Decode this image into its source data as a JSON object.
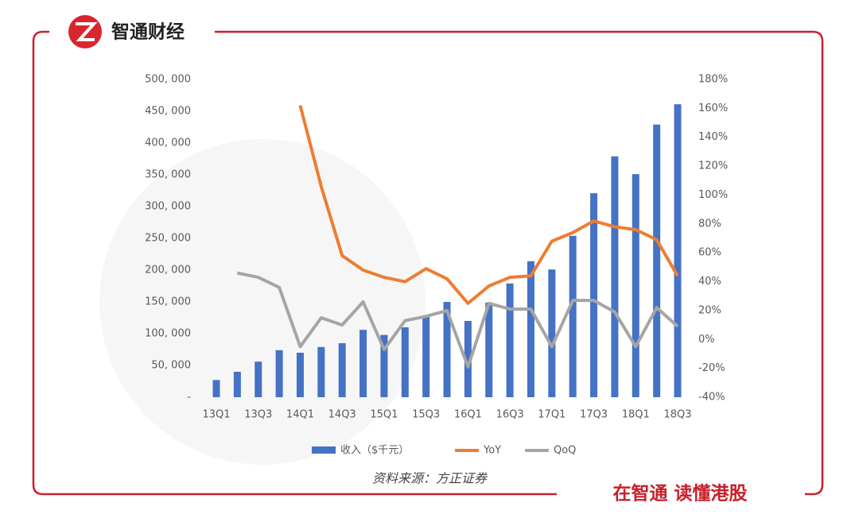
{
  "brand": "智通财经",
  "slogan": "在智通 读懂港股",
  "chart_data": {
    "type": "bar_line",
    "source": "资料来源：方正证券",
    "categories": [
      "13Q1",
      null,
      "13Q3",
      null,
      "14Q1",
      null,
      "14Q3",
      null,
      "15Q1",
      null,
      "15Q3",
      null,
      "16Q1",
      null,
      "16Q3",
      null,
      "17Q1",
      null,
      "17Q3",
      null,
      "18Q1",
      null,
      "18Q3"
    ],
    "series": [
      {
        "name": "收入（$千元）",
        "type": "bar",
        "color": "#4472c4",
        "axis": "y",
        "values": [
          27000,
          40000,
          56000,
          74000,
          70000,
          79000,
          85000,
          106000,
          98000,
          110000,
          128000,
          150000,
          120000,
          149000,
          179000,
          214000,
          201000,
          254000,
          321000,
          379000,
          351000,
          429000,
          461000
        ]
      },
      {
        "name": "YoY",
        "type": "line",
        "color": "#ed7d31",
        "axis": "y2",
        "values": [
          null,
          null,
          null,
          null,
          162,
          106,
          58,
          48,
          43,
          40,
          49,
          42,
          25,
          37,
          43,
          44,
          68,
          74,
          82,
          78,
          76,
          69,
          44
        ]
      },
      {
        "name": "QoQ",
        "type": "line",
        "color": "#a5a5a5",
        "axis": "y2",
        "values": [
          null,
          46,
          43,
          36,
          -5,
          15,
          10,
          26,
          -7,
          13,
          16,
          20,
          -19,
          25,
          21,
          21,
          -5,
          27,
          27,
          19,
          -5,
          22,
          9
        ]
      }
    ],
    "ylim": [
      0,
      500000
    ],
    "yticks": [
      {
        "value": 0,
        "label": "-"
      },
      {
        "value": 50000,
        "label": "50, 000"
      },
      {
        "value": 100000,
        "label": "100, 000"
      },
      {
        "value": 150000,
        "label": "150, 000"
      },
      {
        "value": 200000,
        "label": "200, 000"
      },
      {
        "value": 250000,
        "label": "250, 000"
      },
      {
        "value": 300000,
        "label": "300, 000"
      },
      {
        "value": 350000,
        "label": "350, 000"
      },
      {
        "value": 400000,
        "label": "400, 000"
      },
      {
        "value": 450000,
        "label": "450, 000"
      },
      {
        "value": 500000,
        "label": "500, 000"
      }
    ],
    "y2lim": [
      -40,
      180
    ],
    "y2ticks": [
      {
        "value": -40,
        "label": "-40%"
      },
      {
        "value": -20,
        "label": "-20%"
      },
      {
        "value": 0,
        "label": "0%"
      },
      {
        "value": 20,
        "label": "20%"
      },
      {
        "value": 40,
        "label": "40%"
      },
      {
        "value": 60,
        "label": "60%"
      },
      {
        "value": 80,
        "label": "80%"
      },
      {
        "value": 100,
        "label": "100%"
      },
      {
        "value": 120,
        "label": "120%"
      },
      {
        "value": 140,
        "label": "140%"
      },
      {
        "value": 160,
        "label": "160%"
      },
      {
        "value": 180,
        "label": "180%"
      }
    ],
    "grid": false
  }
}
